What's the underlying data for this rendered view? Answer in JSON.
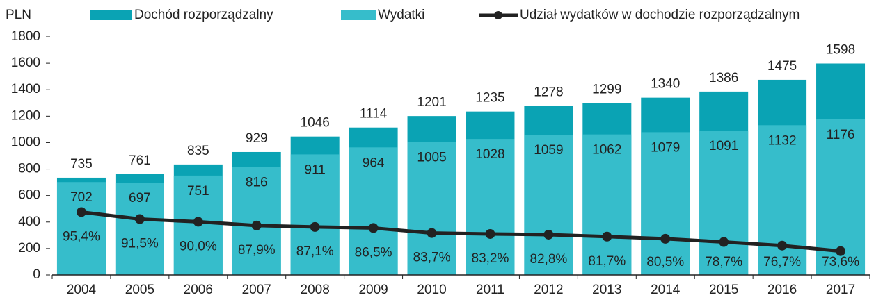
{
  "chart_data": {
    "type": "bar_line",
    "y_label": "PLN",
    "categories": [
      "2004",
      "2005",
      "2006",
      "2007",
      "2008",
      "2009",
      "2010",
      "2011",
      "2012",
      "2013",
      "2014",
      "2015",
      "2016",
      "2017"
    ],
    "series": [
      {
        "name": "Dochód rozporządzalny",
        "color": "#0aa3b4",
        "values": [
          735,
          761,
          835,
          929,
          1046,
          1114,
          1201,
          1235,
          1278,
          1299,
          1340,
          1386,
          1475,
          1598
        ]
      },
      {
        "name": "Wydatki",
        "color": "#36bdcb",
        "values": [
          702,
          697,
          751,
          816,
          911,
          964,
          1005,
          1028,
          1059,
          1062,
          1079,
          1091,
          1132,
          1176
        ]
      },
      {
        "name": "Udział wydatków w dochodzie rozporządzalnym",
        "color": "#222222",
        "axis": "y2",
        "values": [
          95.4,
          91.5,
          90.0,
          87.9,
          87.1,
          86.5,
          83.7,
          83.2,
          82.8,
          81.7,
          80.5,
          78.7,
          76.7,
          73.6
        ],
        "value_labels": [
          "95,4%",
          "91,5%",
          "90,0%",
          "87,9%",
          "87,1%",
          "86,5%",
          "83,7%",
          "83,2%",
          "82,8%",
          "81,7%",
          "80,5%",
          "78,7%",
          "76,7%",
          "73,6%"
        ]
      }
    ],
    "ylim": [
      0,
      1800
    ],
    "yticks": [
      0,
      200,
      400,
      600,
      800,
      1000,
      1200,
      1400,
      1600,
      1800
    ],
    "y2lim": [
      60.3,
      193.3
    ],
    "grid": false,
    "legend": "top"
  }
}
